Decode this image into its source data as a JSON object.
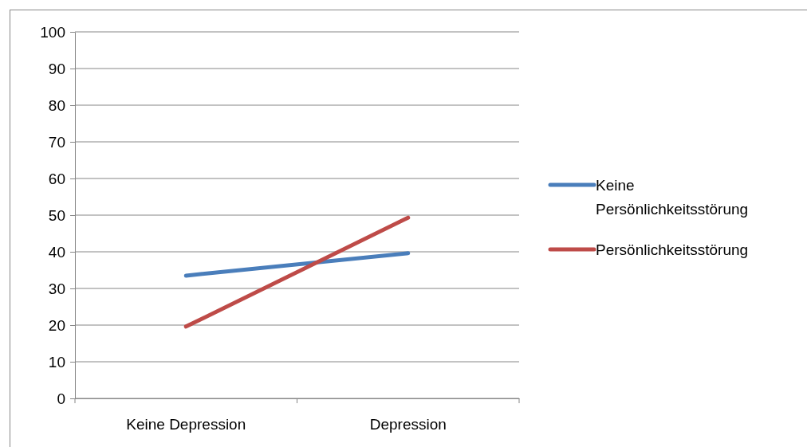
{
  "chart_data": {
    "type": "line",
    "categories": [
      "Keine Depression",
      "Depression"
    ],
    "series": [
      {
        "name": "Keine Persönlichkeitsstörung",
        "color": "#4a7ebb",
        "values": [
          33.5,
          39.6
        ]
      },
      {
        "name": "Persönlichkeitsstörung",
        "color": "#be4b48",
        "values": [
          19.6,
          49.3
        ]
      }
    ],
    "ylim": [
      0,
      100
    ],
    "yticks": [
      0,
      10,
      20,
      30,
      40,
      50,
      60,
      70,
      80,
      90,
      100
    ],
    "grid": "y",
    "legend": "right",
    "marker": "none",
    "line_style": "solid"
  }
}
